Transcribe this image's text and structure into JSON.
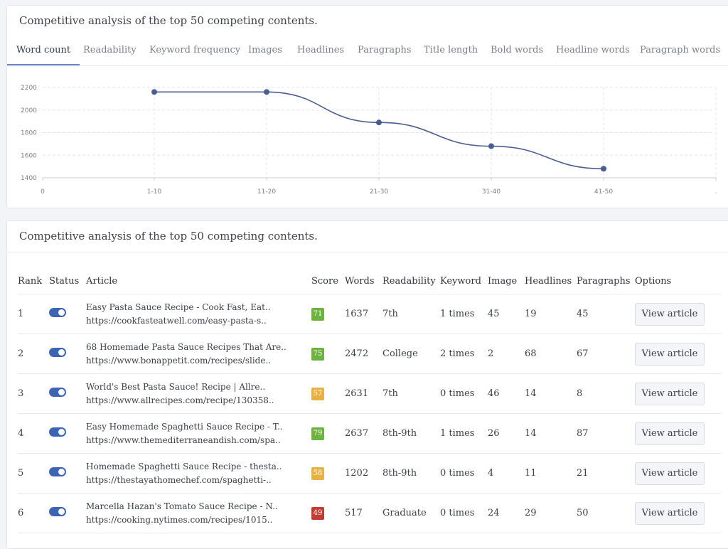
{
  "chart_card": {
    "title": "Competitive analysis of the top 50 competing contents.",
    "tabs": [
      {
        "label": "Word count",
        "active": true
      },
      {
        "label": "Readability"
      },
      {
        "label": "Keyword frequency"
      },
      {
        "label": "Images"
      },
      {
        "label": "Headlines"
      },
      {
        "label": "Paragraphs"
      },
      {
        "label": "Title length"
      },
      {
        "label": "Bold words"
      },
      {
        "label": "Headline words"
      },
      {
        "label": "Paragraph words"
      }
    ]
  },
  "chart_data": {
    "type": "line",
    "categories": [
      "0",
      "1-10",
      "11-20",
      "21-30",
      "31-40",
      "41-50",
      "."
    ],
    "points": [
      {
        "x": "1-10",
        "y": 2160
      },
      {
        "x": "11-20",
        "y": 2160
      },
      {
        "x": "21-30",
        "y": 1890
      },
      {
        "x": "31-40",
        "y": 1680
      },
      {
        "x": "41-50",
        "y": 1480
      }
    ],
    "yticks": [
      1400,
      1600,
      1800,
      2000,
      2200
    ],
    "ylim": [
      1400,
      2200
    ],
    "grid": true,
    "color": "#4a5d8f"
  },
  "table_card": {
    "title": "Competitive analysis of the top 50 competing contents.",
    "headers": [
      "Rank",
      "Status",
      "Article",
      "Score",
      "Words",
      "Readability",
      "Keyword",
      "Image",
      "Headlines",
      "Paragraphs",
      "Options"
    ],
    "rows": [
      {
        "rank": "1",
        "title": "Easy Pasta Sauce Recipe - Cook Fast, Eat..",
        "url": "https://cookfasteatwell.com/easy-pasta-s..",
        "score": "71",
        "score_color": "#6db33f",
        "words": "1637",
        "readability": "7th",
        "keyword": "1 times",
        "image": "45",
        "headlines": "19",
        "paragraphs": "45",
        "button": "View article"
      },
      {
        "rank": "2",
        "title": "68 Homemade Pasta Sauce Recipes That Are..",
        "url": "https://www.bonappetit.com/recipes/slide..",
        "score": "75",
        "score_color": "#6db33f",
        "words": "2472",
        "readability": "College",
        "keyword": "2 times",
        "image": "2",
        "headlines": "68",
        "paragraphs": "67",
        "button": "View article"
      },
      {
        "rank": "3",
        "title": "World's Best Pasta Sauce! Recipe | Allre..",
        "url": "https://www.allrecipes.com/recipe/130358..",
        "score": "57",
        "score_color": "#e9b043",
        "words": "2631",
        "readability": "7th",
        "keyword": "0 times",
        "image": "46",
        "headlines": "14",
        "paragraphs": "8",
        "button": "View article"
      },
      {
        "rank": "4",
        "title": "Easy Homemade Spaghetti Sauce Recipe - T..",
        "url": "https://www.themediterraneandish.com/spa..",
        "score": "79",
        "score_color": "#6db33f",
        "words": "2637",
        "readability": "8th-9th",
        "keyword": "1 times",
        "image": "26",
        "headlines": "14",
        "paragraphs": "87",
        "button": "View article"
      },
      {
        "rank": "5",
        "title": "Homemade Spaghetti Sauce Recipe - thesta..",
        "url": "https://thestayathomechef.com/spaghetti-..",
        "score": "58",
        "score_color": "#e9b043",
        "words": "1202",
        "readability": "8th-9th",
        "keyword": "0 times",
        "image": "4",
        "headlines": "11",
        "paragraphs": "21",
        "button": "View article"
      },
      {
        "rank": "6",
        "title": "Marcella Hazan's Tomato Sauce Recipe - N..",
        "url": "https://cooking.nytimes.com/recipes/1015..",
        "score": "49",
        "score_color": "#c43c31",
        "words": "517",
        "readability": "Graduate",
        "keyword": "0 times",
        "image": "24",
        "headlines": "29",
        "paragraphs": "50",
        "button": "View article"
      }
    ]
  }
}
